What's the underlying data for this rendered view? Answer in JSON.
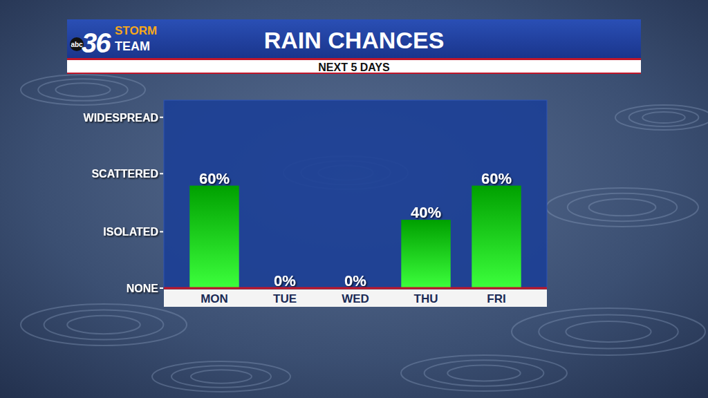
{
  "chart_data": {
    "type": "bar",
    "title": "RAIN CHANCES",
    "subtitle": "NEXT 5 DAYS",
    "annotations": [
      "abc",
      "36",
      "STORM",
      "TEAM"
    ],
    "categories": [
      "MON",
      "TUE",
      "WED",
      "THU",
      "FRI"
    ],
    "values": [
      60,
      0,
      0,
      40,
      60
    ],
    "value_labels": [
      "60%",
      "0%",
      "0%",
      "40%",
      "60%"
    ],
    "data_labels": true,
    "color": "#00a000",
    "ylim": [
      0,
      110
    ],
    "yticks": [
      {
        "value": 0,
        "label": "NONE"
      },
      {
        "value": 33,
        "label": "ISOLATED"
      },
      {
        "value": 67,
        "label": "SCATTERED"
      },
      {
        "value": 100,
        "label": "WIDESPREAD"
      }
    ],
    "grid": false
  }
}
